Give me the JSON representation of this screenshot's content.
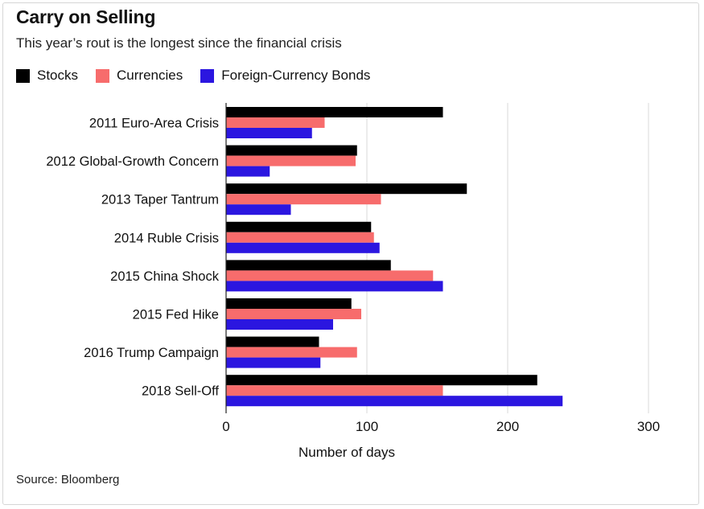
{
  "colors": {
    "stocks": "#000000",
    "currencies": "#f76c6c",
    "bonds": "#2b16e0",
    "grid": "#d9d9d9"
  },
  "chart_data": {
    "type": "bar",
    "orientation": "horizontal",
    "title": "Carry on Selling",
    "subtitle": "This year’s rout is the longest since the financial crisis",
    "xlabel": "Number of days",
    "ylabel": "",
    "xlim": [
      0,
      300
    ],
    "xticks": [
      0,
      100,
      200,
      300
    ],
    "grid": true,
    "legend_position": "top-left",
    "categories": [
      "2011 Euro-Area Crisis",
      "2012 Global-Growth Concern",
      "2013 Taper Tantrum",
      "2014 Ruble Crisis",
      "2015 China Shock",
      "2015 Fed Hike",
      "2016 Trump Campaign",
      "2018 Sell-Off"
    ],
    "series": [
      {
        "name": "Stocks",
        "color": "#000000",
        "values": [
          154,
          93,
          171,
          103,
          117,
          89,
          66,
          221
        ]
      },
      {
        "name": "Currencies",
        "color": "#f76c6c",
        "values": [
          70,
          92,
          110,
          105,
          147,
          96,
          93,
          154
        ]
      },
      {
        "name": "Foreign-Currency Bonds",
        "color": "#2b16e0",
        "values": [
          61,
          31,
          46,
          109,
          154,
          76,
          67,
          239
        ]
      }
    ],
    "source": "Source: Bloomberg"
  }
}
